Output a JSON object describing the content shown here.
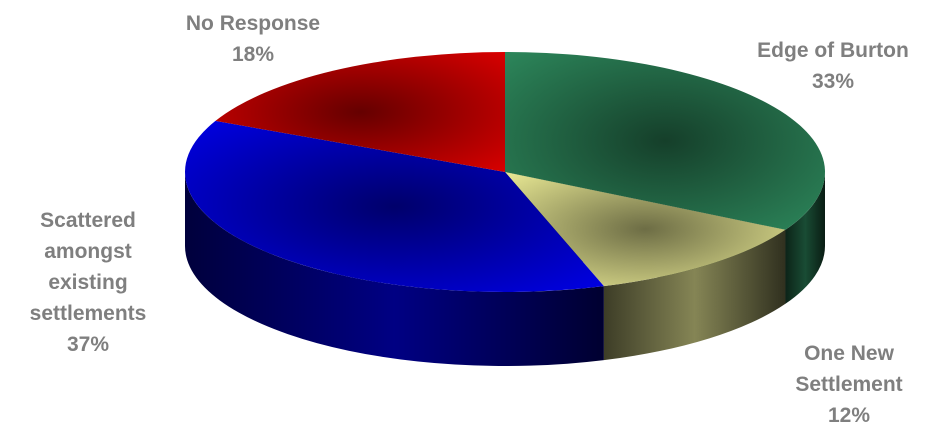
{
  "chart_data": {
    "type": "pie",
    "style": "3d",
    "title": "",
    "slices": [
      {
        "label_lines": [
          "Edge of Burton"
        ],
        "value_label": "33%",
        "value": 33,
        "color": "#2e8b5e"
      },
      {
        "label_lines": [
          "One New",
          "Settlement"
        ],
        "value_label": "12%",
        "value": 12,
        "color": "#f2f29a"
      },
      {
        "label_lines": [
          "Scattered",
          "amongst",
          "existing",
          "settlements"
        ],
        "value_label": "37%",
        "value": 37,
        "color": "#0000ee"
      },
      {
        "label_lines": [
          "No Response"
        ],
        "value_label": "18%",
        "value": 18,
        "color": "#e00000"
      }
    ],
    "label_color": "#7f7f7f"
  }
}
